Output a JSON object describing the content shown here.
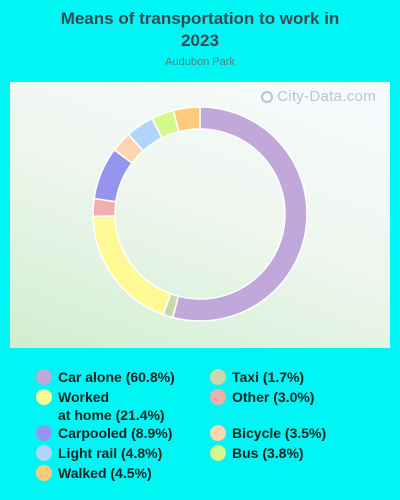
{
  "header": {
    "title_line1": "Means of transportation to work in",
    "title_line2": "2023",
    "subtitle": "Audubon Park",
    "watermark": "City-Data.com"
  },
  "chart_data": {
    "type": "pie",
    "style": "donut",
    "title": "Means of transportation to work in 2023",
    "subtitle": "Audubon Park",
    "categories": [
      "Car alone",
      "Taxi",
      "Worked at home",
      "Other",
      "Carpooled",
      "Bicycle",
      "Light rail",
      "Bus",
      "Walked"
    ],
    "values": [
      60.8,
      1.7,
      21.4,
      3.0,
      8.9,
      3.5,
      4.8,
      3.8,
      4.5
    ],
    "colors": [
      "#c0a8db",
      "#c9d9a9",
      "#fdf995",
      "#f2adb0",
      "#9595ee",
      "#fdd5b0",
      "#b1d4f9",
      "#d5f78b",
      "#fdc97b"
    ],
    "legend_placement": "bottom"
  },
  "legend": [
    {
      "label": "Car alone (60.8%)",
      "color": "#c0a8db"
    },
    {
      "label": "Taxi (1.7%)",
      "color": "#c9d9a9"
    },
    {
      "label": "Worked\nat home (21.4%)",
      "color": "#fdf995"
    },
    {
      "label": "Other (3.0%)",
      "color": "#f2adb0"
    },
    {
      "label": "Carpooled (8.9%)",
      "color": "#9595ee"
    },
    {
      "label": "Bicycle (3.5%)",
      "color": "#fdd5b0"
    },
    {
      "label": "Light rail (4.8%)",
      "color": "#b1d4f9"
    },
    {
      "label": "Bus (3.8%)",
      "color": "#d5f78b"
    },
    {
      "label": "Walked (4.5%)",
      "color": "#fdc97b"
    }
  ]
}
